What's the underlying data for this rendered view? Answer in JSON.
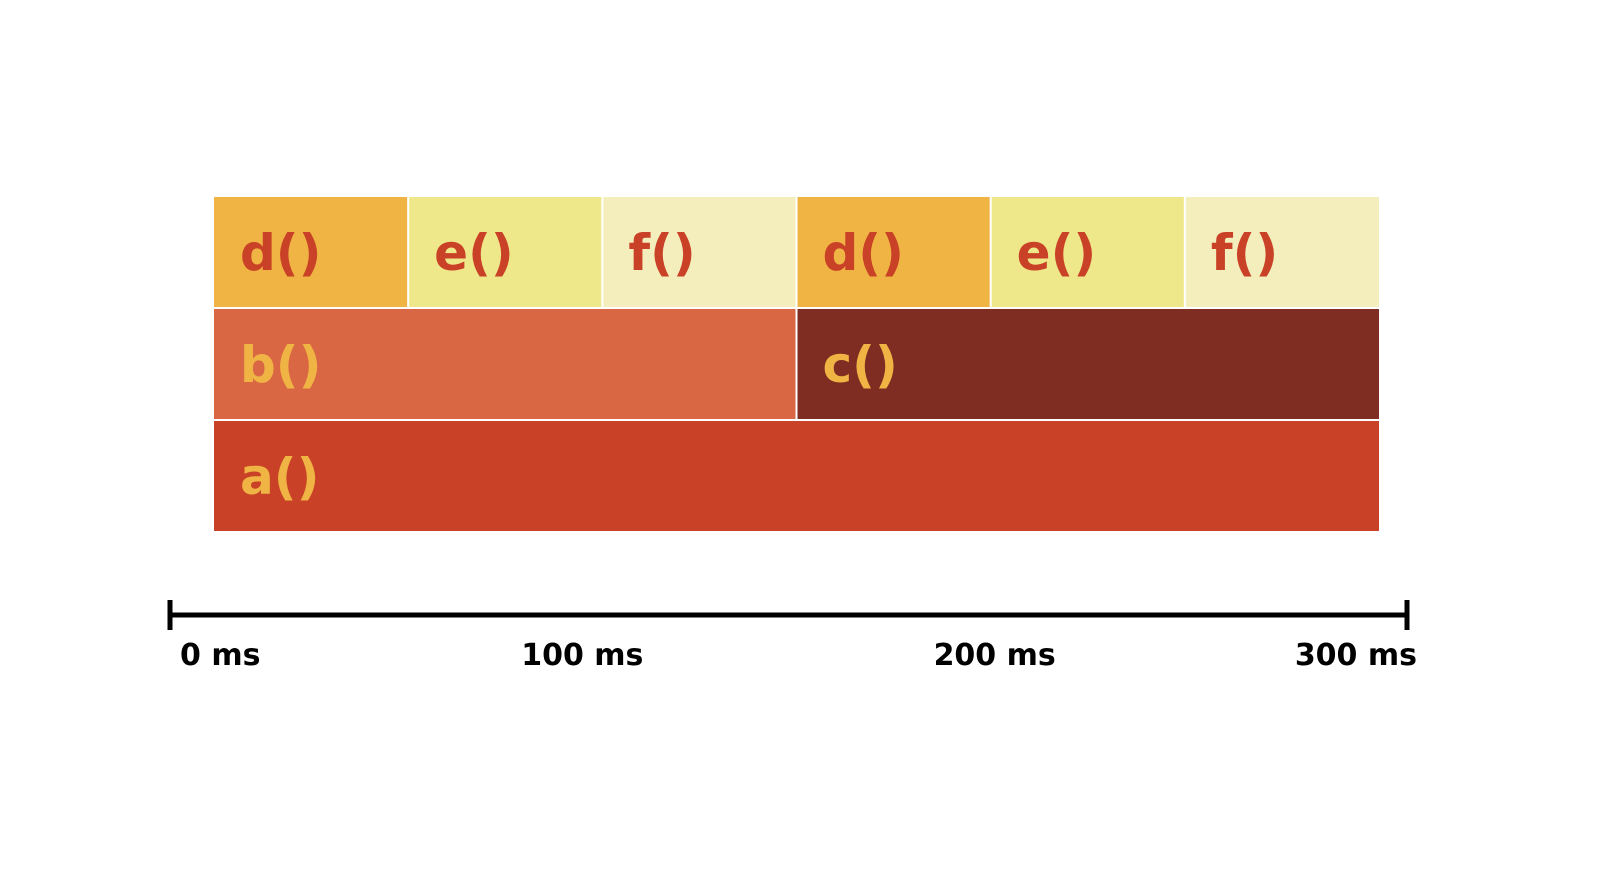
{
  "colors": {
    "d": "#efb443",
    "e": "#efe88a",
    "f": "#f3eebc",
    "b": "#da6744",
    "c": "#7f2c23",
    "a": "#c94126",
    "label_on_light": "#c94126",
    "label_on_dark": "#efb443",
    "axis": "#000000",
    "separator": "#ffffff"
  },
  "frames": [
    {
      "name": "a()",
      "row": 0,
      "start": 0,
      "end": 300,
      "color": "a",
      "label_color": "label_on_dark"
    },
    {
      "name": "b()",
      "row": 1,
      "start": 0,
      "end": 150,
      "color": "b",
      "label_color": "label_on_dark"
    },
    {
      "name": "c()",
      "row": 1,
      "start": 150,
      "end": 300,
      "color": "c",
      "label_color": "label_on_dark"
    },
    {
      "name": "d()",
      "row": 2,
      "start": 0,
      "end": 50,
      "color": "d",
      "label_color": "label_on_light"
    },
    {
      "name": "e()",
      "row": 2,
      "start": 50,
      "end": 100,
      "color": "e",
      "label_color": "label_on_light"
    },
    {
      "name": "f()",
      "row": 2,
      "start": 100,
      "end": 150,
      "color": "f",
      "label_color": "label_on_light"
    },
    {
      "name": "d()",
      "row": 2,
      "start": 150,
      "end": 200,
      "color": "d",
      "label_color": "label_on_light"
    },
    {
      "name": "e()",
      "row": 2,
      "start": 200,
      "end": 250,
      "color": "e",
      "label_color": "label_on_light"
    },
    {
      "name": "f()",
      "row": 2,
      "start": 250,
      "end": 300,
      "color": "f",
      "label_color": "label_on_light"
    }
  ],
  "axis": {
    "min": 0,
    "max": 300,
    "ticks": [
      {
        "value": 0,
        "label": "0 ms"
      },
      {
        "value": 100,
        "label": "100 ms"
      },
      {
        "value": 200,
        "label": "200 ms"
      },
      {
        "value": 300,
        "label": "300 ms"
      }
    ]
  }
}
